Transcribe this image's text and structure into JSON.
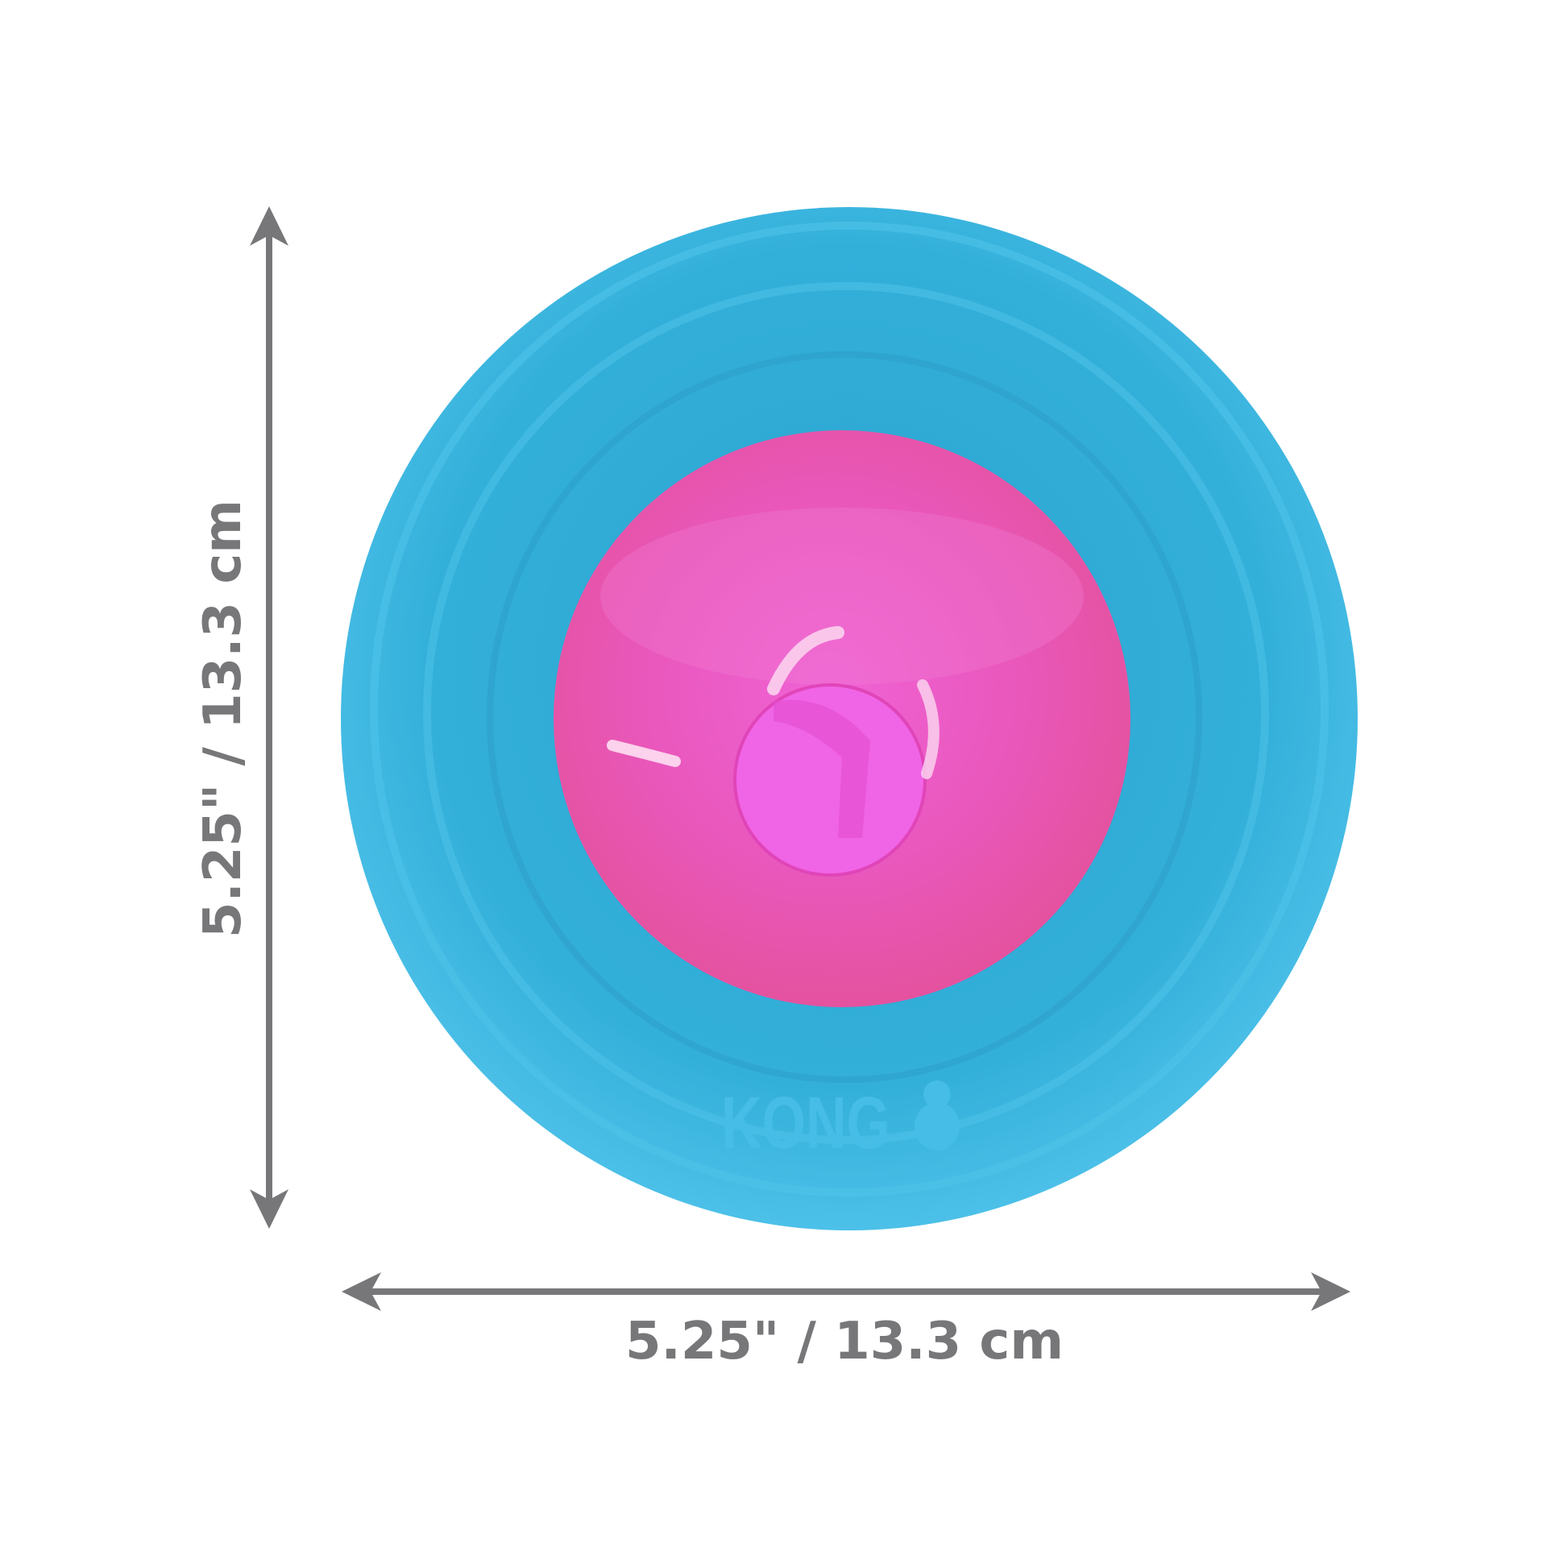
{
  "product": {
    "brand_logo": "KONG",
    "colors": {
      "ring": "#32afd9",
      "ring_light": "#56c6ea",
      "ball": "#ea4fb4",
      "ball_light": "#f47ad6",
      "dimension": "#77777a"
    }
  },
  "dimensions": {
    "width_label": "5.25\" / 13.3 cm",
    "height_label": "5.25\" / 13.3 cm"
  }
}
